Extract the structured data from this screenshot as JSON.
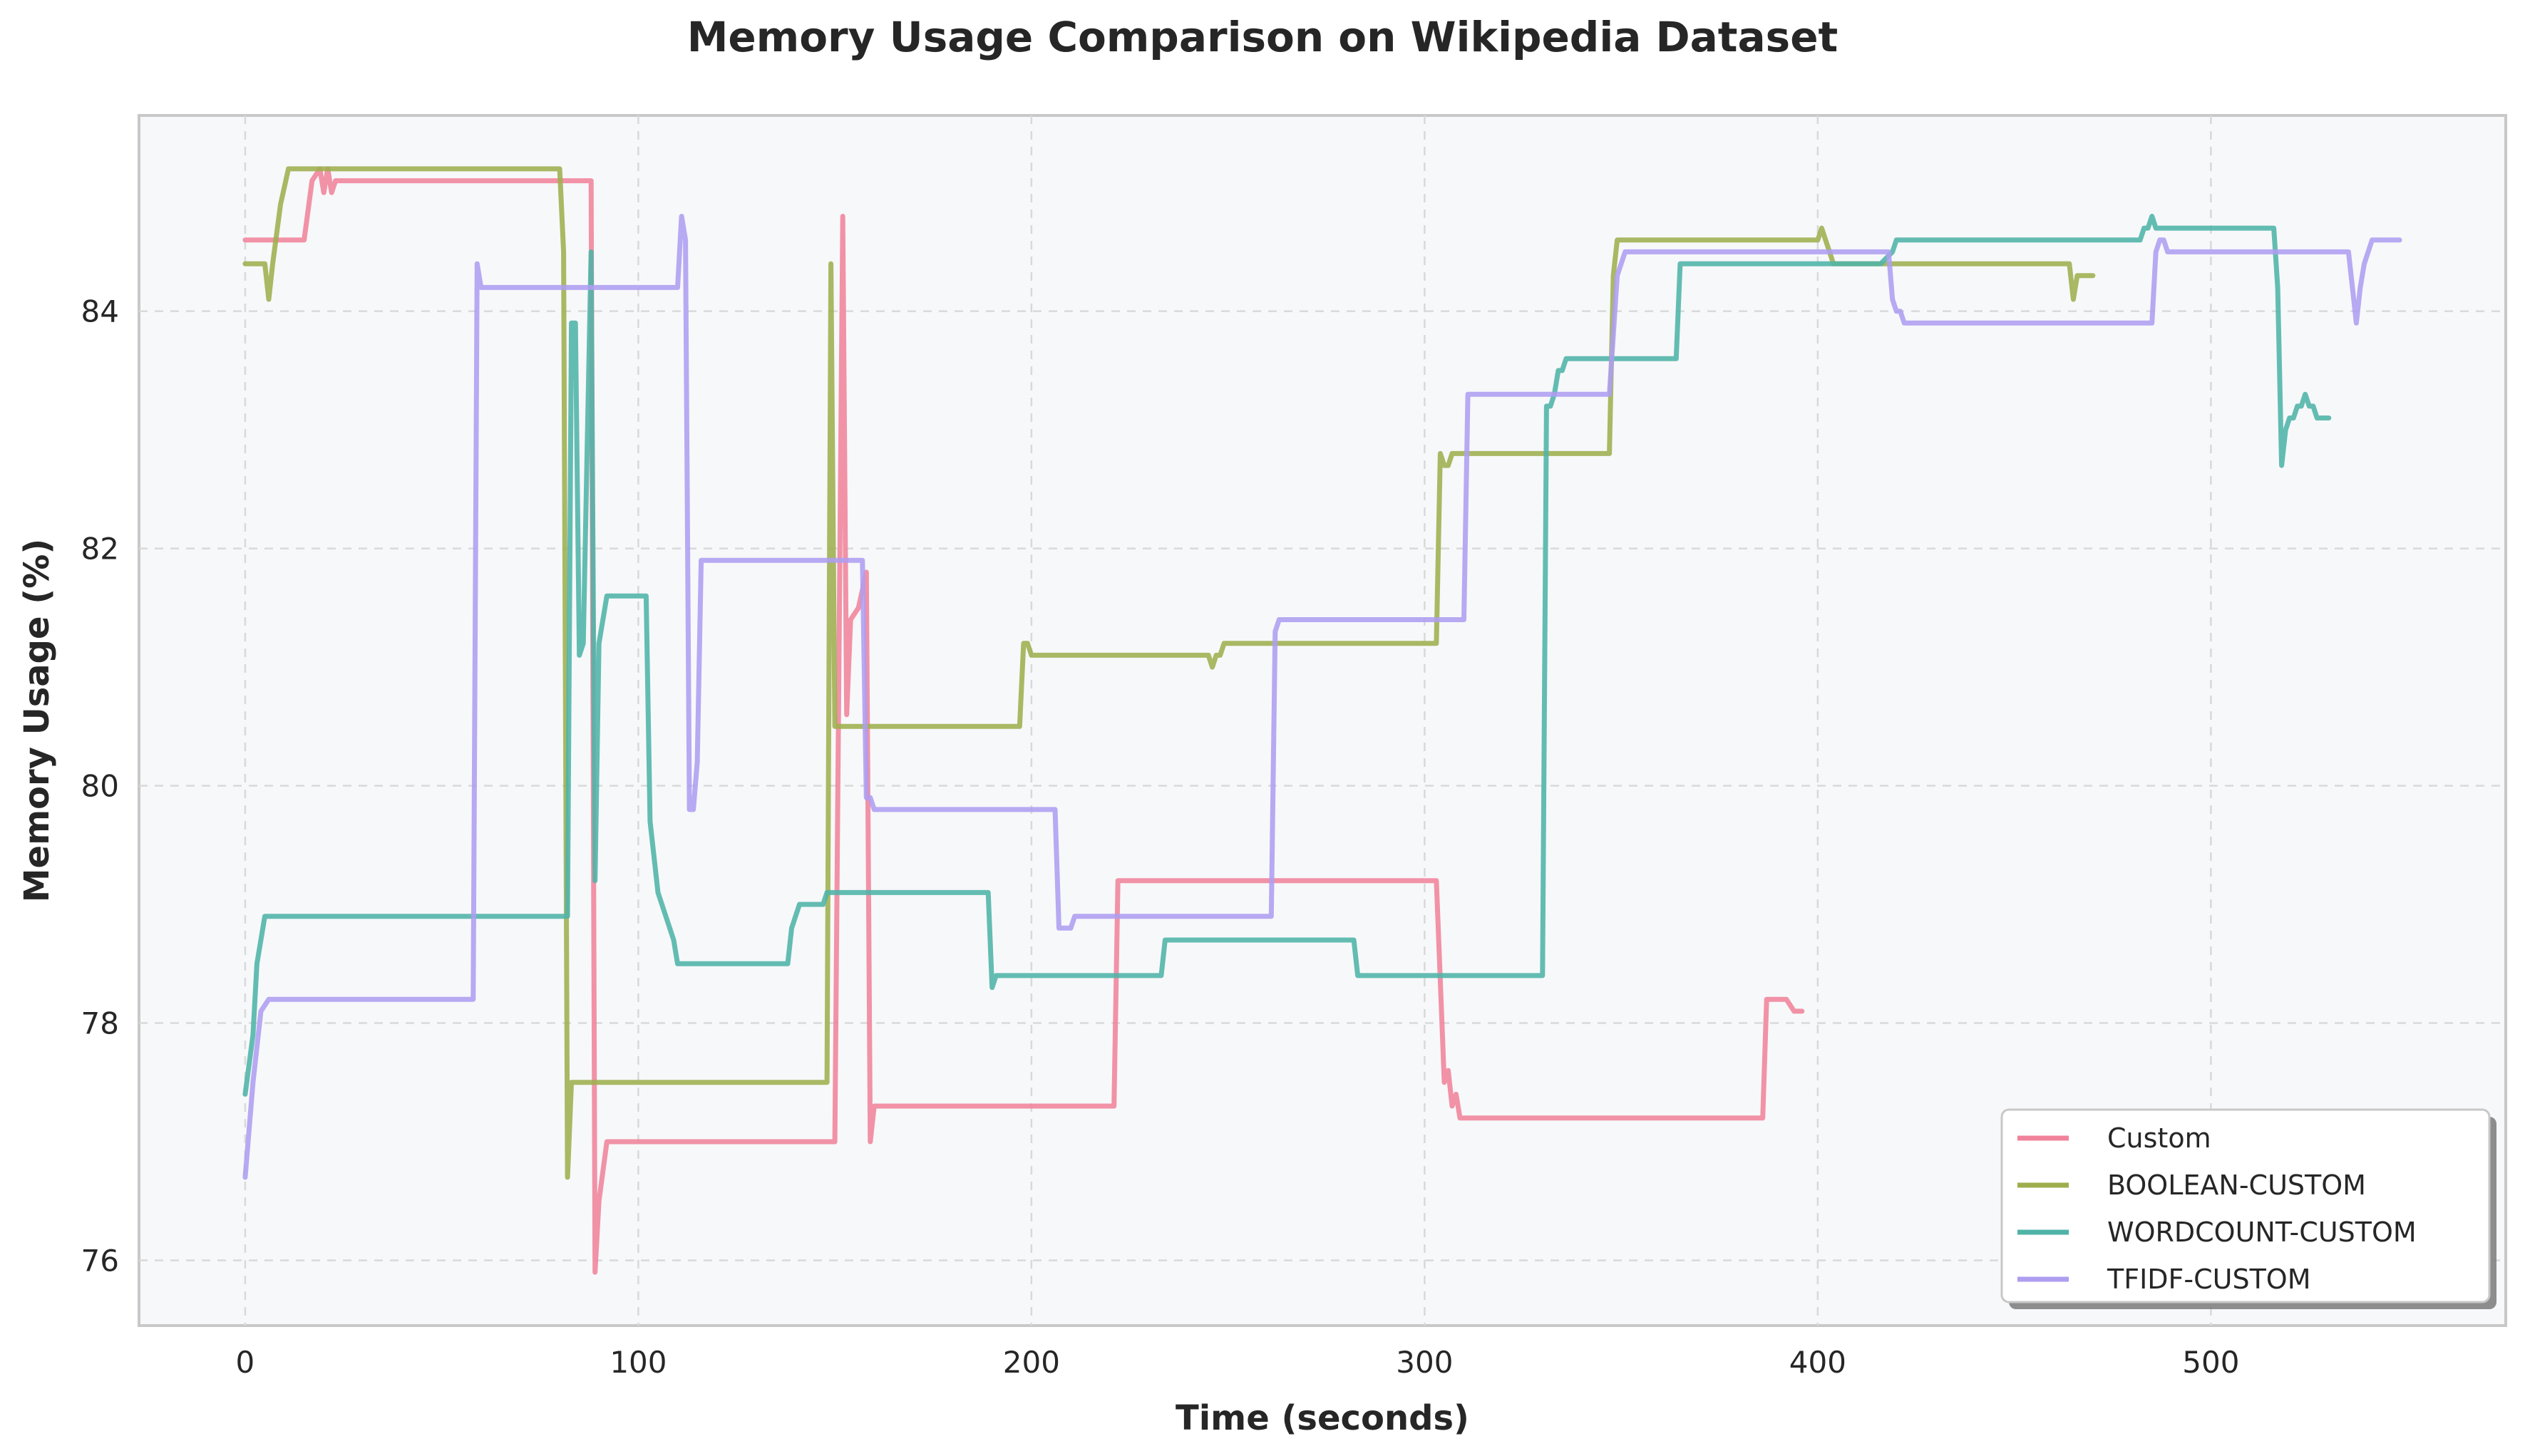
{
  "chart_data": {
    "type": "line",
    "title": "Memory Usage Comparison on Wikipedia Dataset",
    "xlabel": "Time (seconds)",
    "ylabel": "Memory Usage (%)",
    "xlim": [
      -27,
      575
    ],
    "ylim": [
      75.45,
      85.65
    ],
    "xticks": [
      0,
      100,
      200,
      300,
      400,
      500
    ],
    "yticks": [
      76,
      78,
      80,
      82,
      84
    ],
    "grid": true,
    "legend_position": "bottom-right",
    "plot_background": "#f7f8fa",
    "series": [
      {
        "name": "Custom",
        "color": "#f0839b",
        "points": [
          [
            0,
            84.6
          ],
          [
            15,
            84.6
          ],
          [
            17,
            85.1
          ],
          [
            19,
            85.2
          ],
          [
            20,
            85.0
          ],
          [
            21,
            85.2
          ],
          [
            22,
            85.0
          ],
          [
            23,
            85.1
          ],
          [
            88,
            85.1
          ],
          [
            89,
            75.9
          ],
          [
            90,
            76.5
          ],
          [
            92,
            77.0
          ],
          [
            150,
            77.0
          ],
          [
            152,
            84.8
          ],
          [
            153,
            80.6
          ],
          [
            154,
            81.4
          ],
          [
            156,
            81.5
          ],
          [
            158,
            81.8
          ],
          [
            159,
            77.0
          ],
          [
            160,
            77.3
          ],
          [
            221,
            77.3
          ],
          [
            222,
            79.2
          ],
          [
            303,
            79.2
          ],
          [
            305,
            77.5
          ],
          [
            306,
            77.6
          ],
          [
            307,
            77.3
          ],
          [
            308,
            77.4
          ],
          [
            309,
            77.2
          ],
          [
            386,
            77.2
          ],
          [
            387,
            78.2
          ],
          [
            392,
            78.2
          ],
          [
            394,
            78.1
          ],
          [
            396,
            78.1
          ]
        ]
      },
      {
        "name": "BOOLEAN-CUSTOM",
        "color": "#9eae4d",
        "points": [
          [
            0,
            84.4
          ],
          [
            5,
            84.4
          ],
          [
            6,
            84.1
          ],
          [
            7,
            84.4
          ],
          [
            9,
            84.9
          ],
          [
            11,
            85.2
          ],
          [
            80,
            85.2
          ],
          [
            81,
            84.5
          ],
          [
            82,
            76.7
          ],
          [
            83,
            77.5
          ],
          [
            148,
            77.5
          ],
          [
            149,
            84.4
          ],
          [
            150,
            80.5
          ],
          [
            197,
            80.5
          ],
          [
            198,
            81.2
          ],
          [
            199,
            81.2
          ],
          [
            200,
            81.1
          ],
          [
            245,
            81.1
          ],
          [
            246,
            81.0
          ],
          [
            247,
            81.1
          ],
          [
            248,
            81.1
          ],
          [
            249,
            81.2
          ],
          [
            303,
            81.2
          ],
          [
            304,
            82.8
          ],
          [
            305,
            82.7
          ],
          [
            306,
            82.7
          ],
          [
            307,
            82.8
          ],
          [
            347,
            82.8
          ],
          [
            348,
            84.3
          ],
          [
            349,
            84.6
          ],
          [
            400,
            84.6
          ],
          [
            401,
            84.7
          ],
          [
            402,
            84.6
          ],
          [
            404,
            84.4
          ],
          [
            464,
            84.4
          ],
          [
            465,
            84.1
          ],
          [
            466,
            84.3
          ],
          [
            470,
            84.3
          ]
        ]
      },
      {
        "name": "WORDCOUNT-CUSTOM",
        "color": "#4fb3a7",
        "points": [
          [
            0,
            77.4
          ],
          [
            2,
            77.9
          ],
          [
            3,
            78.5
          ],
          [
            5,
            78.9
          ],
          [
            82,
            78.9
          ],
          [
            83,
            83.9
          ],
          [
            84,
            83.9
          ],
          [
            85,
            81.1
          ],
          [
            86,
            81.2
          ],
          [
            88,
            84.5
          ],
          [
            89,
            79.2
          ],
          [
            90,
            81.2
          ],
          [
            92,
            81.6
          ],
          [
            102,
            81.6
          ],
          [
            103,
            79.7
          ],
          [
            105,
            79.1
          ],
          [
            107,
            78.9
          ],
          [
            109,
            78.7
          ],
          [
            110,
            78.5
          ],
          [
            138,
            78.5
          ],
          [
            139,
            78.8
          ],
          [
            141,
            79.0
          ],
          [
            147,
            79.0
          ],
          [
            148,
            79.1
          ],
          [
            189,
            79.1
          ],
          [
            190,
            78.3
          ],
          [
            191,
            78.4
          ],
          [
            233,
            78.4
          ],
          [
            234,
            78.7
          ],
          [
            282,
            78.7
          ],
          [
            283,
            78.4
          ],
          [
            330,
            78.4
          ],
          [
            331,
            83.2
          ],
          [
            332,
            83.2
          ],
          [
            333,
            83.3
          ],
          [
            334,
            83.5
          ],
          [
            335,
            83.5
          ],
          [
            336,
            83.6
          ],
          [
            364,
            83.6
          ],
          [
            365,
            84.4
          ],
          [
            416,
            84.4
          ],
          [
            419,
            84.5
          ],
          [
            420,
            84.6
          ],
          [
            482,
            84.6
          ],
          [
            483,
            84.7
          ],
          [
            484,
            84.7
          ],
          [
            485,
            84.8
          ],
          [
            486,
            84.7
          ],
          [
            516,
            84.7
          ],
          [
            517,
            84.2
          ],
          [
            518,
            82.7
          ],
          [
            519,
            83.0
          ],
          [
            520,
            83.1
          ],
          [
            521,
            83.1
          ],
          [
            522,
            83.2
          ],
          [
            523,
            83.2
          ],
          [
            524,
            83.3
          ],
          [
            525,
            83.2
          ],
          [
            526,
            83.2
          ],
          [
            527,
            83.1
          ],
          [
            530,
            83.1
          ]
        ]
      },
      {
        "name": "TFIDF-CUSTOM",
        "color": "#ae9df0",
        "points": [
          [
            0,
            76.7
          ],
          [
            2,
            77.5
          ],
          [
            4,
            78.1
          ],
          [
            6,
            78.2
          ],
          [
            58,
            78.2
          ],
          [
            59,
            84.4
          ],
          [
            60,
            84.2
          ],
          [
            110,
            84.2
          ],
          [
            111,
            84.8
          ],
          [
            112,
            84.6
          ],
          [
            113,
            79.8
          ],
          [
            114,
            79.8
          ],
          [
            115,
            80.2
          ],
          [
            116,
            81.9
          ],
          [
            157,
            81.9
          ],
          [
            158,
            79.9
          ],
          [
            159,
            79.9
          ],
          [
            160,
            79.8
          ],
          [
            206,
            79.8
          ],
          [
            207,
            78.8
          ],
          [
            210,
            78.8
          ],
          [
            211,
            78.9
          ],
          [
            261,
            78.9
          ],
          [
            262,
            81.3
          ],
          [
            263,
            81.4
          ],
          [
            310,
            81.4
          ],
          [
            311,
            83.3
          ],
          [
            347,
            83.3
          ],
          [
            349,
            84.3
          ],
          [
            351,
            84.5
          ],
          [
            418,
            84.5
          ],
          [
            419,
            84.1
          ],
          [
            420,
            84.0
          ],
          [
            421,
            84.0
          ],
          [
            422,
            83.9
          ],
          [
            485,
            83.9
          ],
          [
            486,
            84.5
          ],
          [
            487,
            84.6
          ],
          [
            488,
            84.6
          ],
          [
            489,
            84.5
          ],
          [
            535,
            84.5
          ],
          [
            537,
            83.9
          ],
          [
            538,
            84.2
          ],
          [
            539,
            84.4
          ],
          [
            541,
            84.6
          ],
          [
            548,
            84.6
          ]
        ]
      }
    ]
  }
}
